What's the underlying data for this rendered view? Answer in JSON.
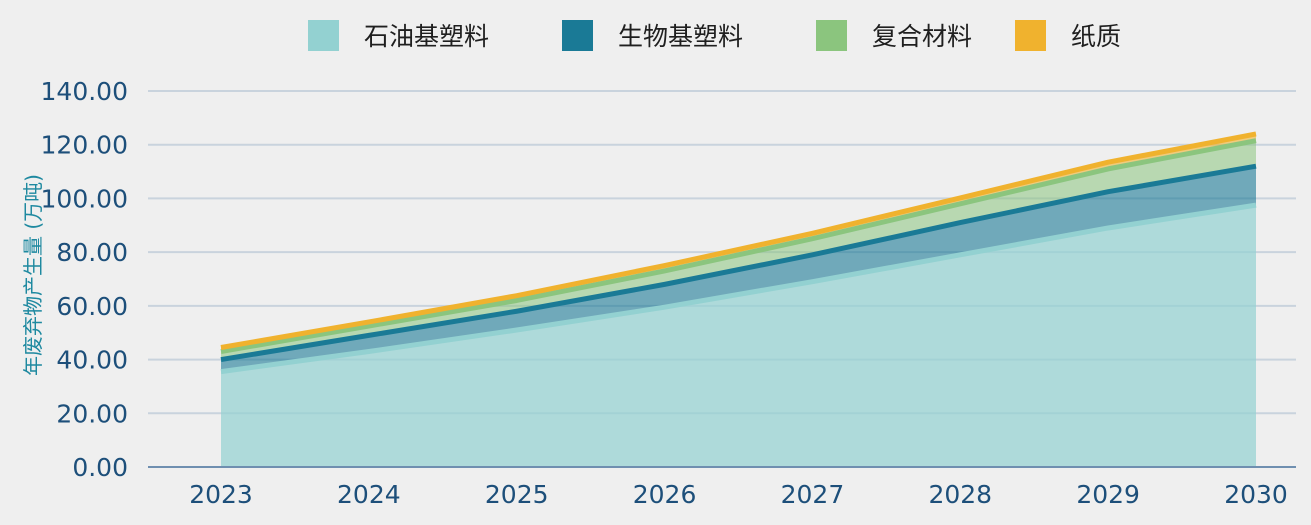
{
  "chart_data": {
    "type": "area",
    "stacked": true,
    "title": "",
    "xlabel": "",
    "ylabel": "年废弃物产生量 (万吨)",
    "x": [
      "2023",
      "2024",
      "2025",
      "2026",
      "2027",
      "2028",
      "2029",
      "2030"
    ],
    "ylim": [
      0,
      140
    ],
    "yticks": [
      "0.00",
      "20.00",
      "40.00",
      "60.00",
      "80.00",
      "100.00",
      "120.00",
      "140.00"
    ],
    "grid": true,
    "legend_position": "top",
    "series": [
      {
        "name": "石油基塑料",
        "color": "#93d1d1",
        "values": [
          35.5,
          43.0,
          51.0,
          59.5,
          69.0,
          79.0,
          89.0,
          97.5
        ]
      },
      {
        "name": "生物基塑料",
        "color": "#1a7a96",
        "values": [
          4.5,
          6.0,
          7.0,
          8.5,
          10.0,
          12.0,
          13.5,
          14.5
        ]
      },
      {
        "name": "复合材料",
        "color": "#8bc57e",
        "values": [
          3.0,
          3.5,
          4.0,
          5.0,
          6.0,
          7.0,
          8.5,
          9.5
        ]
      },
      {
        "name": "纸质",
        "color": "#f0b22e",
        "values": [
          1.5,
          1.5,
          1.8,
          2.0,
          2.0,
          2.2,
          2.5,
          2.5
        ]
      }
    ]
  }
}
